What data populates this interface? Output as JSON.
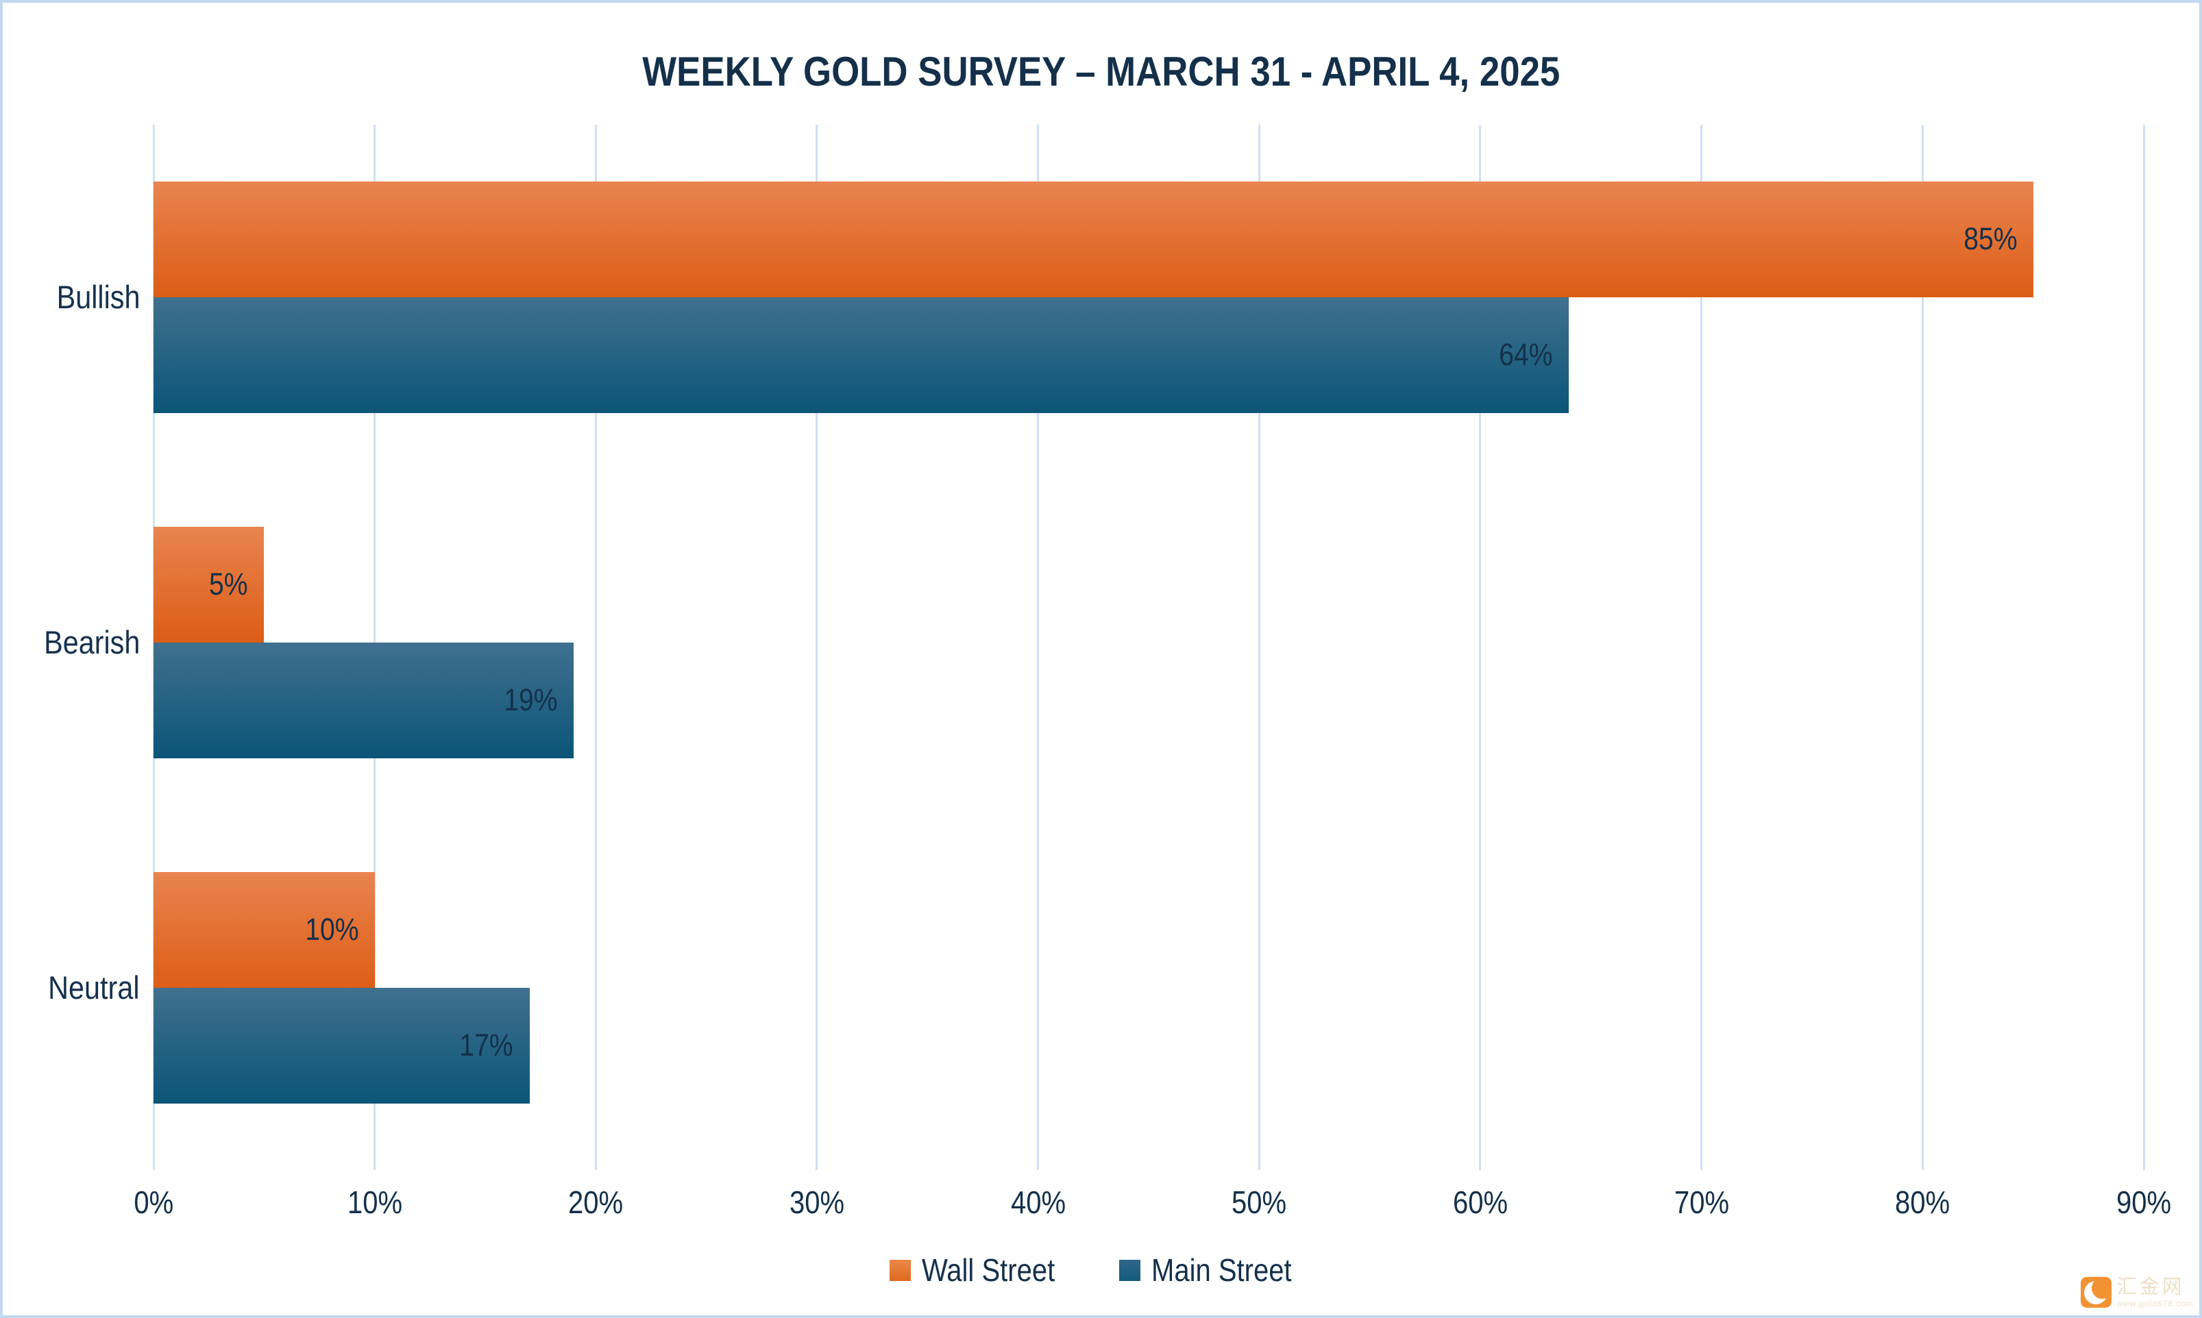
{
  "frame": {
    "background": "#ffffff",
    "border_color": "#c3d8f0"
  },
  "title": {
    "text": "WEEKLY GOLD SURVEY – MARCH 31 - APRIL 4, 2025",
    "color": "#14304a"
  },
  "chart_data": {
    "type": "bar",
    "orientation": "horizontal",
    "title": "WEEKLY GOLD SURVEY – MARCH 31 - APRIL 4, 2025",
    "categories": [
      "Bullish",
      "Bearish",
      "Neutral"
    ],
    "series": [
      {
        "name": "Wall Street",
        "values": [
          85,
          5,
          10
        ],
        "color_top": "#E98450",
        "color_bottom": "#DD5D15",
        "legend_color_top": "#EC8847",
        "legend_color_bottom": "#E06A20"
      },
      {
        "name": "Main Street",
        "values": [
          64,
          19,
          17
        ],
        "color_top": "#40708F",
        "color_bottom": "#0B5577",
        "legend_color_top": "#2F6789",
        "legend_color_bottom": "#145A7D"
      }
    ],
    "value_suffix": "%",
    "xlim": [
      0,
      90
    ],
    "x_ticks": [
      "0%",
      "10%",
      "20%",
      "30%",
      "40%",
      "50%",
      "60%",
      "70%",
      "80%",
      "90%"
    ],
    "grid": true,
    "gridline_color": "#cfe0f3",
    "legend_position": "bottom",
    "data_labels": "inside-end",
    "data_label_color": "#14304a"
  },
  "watermark": {
    "brand": "汇金网",
    "url": "www.gold678.com",
    "logo_color": "#f2871e",
    "text_color": "#ecdcc1"
  }
}
